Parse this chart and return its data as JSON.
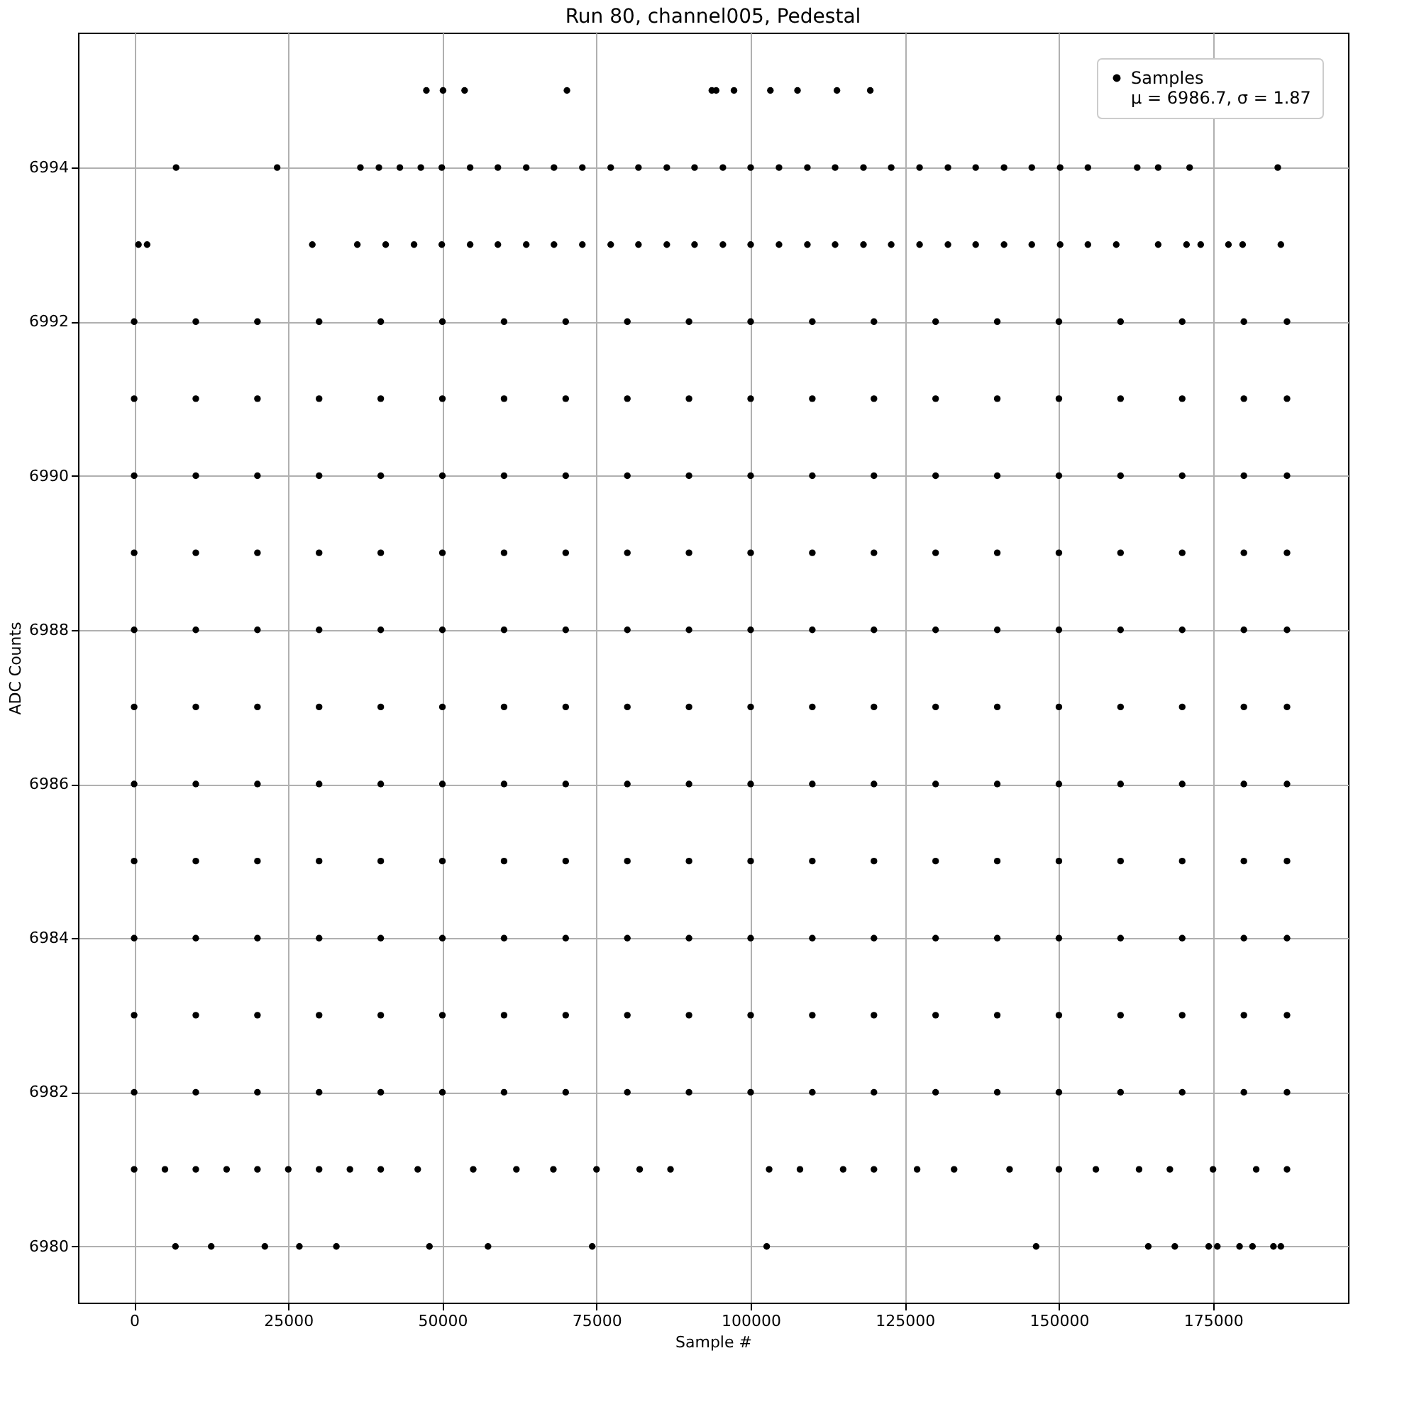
{
  "chart_data": {
    "type": "scatter",
    "title": "Run 80, channel005, Pedestal",
    "xlabel": "Sample #",
    "ylabel": "ADC Counts",
    "xlim": [
      -9100,
      196900
    ],
    "xticks": [
      0,
      25000,
      50000,
      75000,
      100000,
      125000,
      150000,
      175000
    ],
    "ylim": [
      6979.27,
      6995.75
    ],
    "yticks": [
      6980,
      6982,
      6984,
      6986,
      6988,
      6990,
      6992,
      6994
    ],
    "grid": true,
    "legend": "top right",
    "marker": "circle",
    "series": [
      {
        "name": "Samples\nμ = 6986.7, σ = 1.87",
        "color": "#000000",
        "x": [
          0,
          10000,
          20000,
          30000,
          40000,
          50000,
          60000,
          70000,
          80000,
          90000,
          100000,
          110000,
          120000,
          130000,
          140000,
          150000,
          160000,
          170000,
          180000,
          187000
        ],
        "values": [
          6986,
          6986,
          6986,
          6986,
          6986,
          6986,
          6986,
          6986,
          6986,
          6986,
          6986,
          6986,
          6986,
          6986,
          6986,
          6986,
          6986,
          6986,
          6986,
          6986
        ]
      },
      {
        "color": "#000000",
        "x": [
          0,
          10000,
          20000,
          30000,
          40000,
          50000,
          60000,
          70000,
          80000,
          90000,
          100000,
          110000,
          120000,
          130000,
          140000,
          150000,
          160000,
          170000,
          180000,
          187000
        ],
        "values": [
          6982,
          6982,
          6982,
          6982,
          6982,
          6982,
          6982,
          6982,
          6982,
          6982,
          6982,
          6982,
          6982,
          6982,
          6982,
          6982,
          6982,
          6982,
          6982,
          6982
        ]
      },
      {
        "color": "#000000",
        "x": [
          0,
          10000,
          20000,
          30000,
          40000,
          50000,
          60000,
          70000,
          80000,
          90000,
          100000,
          110000,
          120000,
          130000,
          140000,
          150000,
          160000,
          170000,
          180000,
          187000
        ],
        "values": [
          6983,
          6983,
          6983,
          6983,
          6983,
          6983,
          6983,
          6983,
          6983,
          6983,
          6983,
          6983,
          6983,
          6983,
          6983,
          6983,
          6983,
          6983,
          6983,
          6983
        ]
      },
      {
        "color": "#000000",
        "x": [
          0,
          10000,
          20000,
          30000,
          40000,
          50000,
          60000,
          70000,
          80000,
          90000,
          100000,
          110000,
          120000,
          130000,
          140000,
          150000,
          160000,
          170000,
          180000,
          187000
        ],
        "values": [
          6984,
          6984,
          6984,
          6984,
          6984,
          6984,
          6984,
          6984,
          6984,
          6984,
          6984,
          6984,
          6984,
          6984,
          6984,
          6984,
          6984,
          6984,
          6984,
          6984
        ]
      },
      {
        "color": "#000000",
        "x": [
          0,
          10000,
          20000,
          30000,
          40000,
          50000,
          60000,
          70000,
          80000,
          90000,
          100000,
          110000,
          120000,
          130000,
          140000,
          150000,
          160000,
          170000,
          180000,
          187000
        ],
        "values": [
          6985,
          6985,
          6985,
          6985,
          6985,
          6985,
          6985,
          6985,
          6985,
          6985,
          6985,
          6985,
          6985,
          6985,
          6985,
          6985,
          6985,
          6985,
          6985,
          6985
        ]
      },
      {
        "color": "#000000",
        "x": [
          0,
          10000,
          20000,
          30000,
          40000,
          50000,
          60000,
          70000,
          80000,
          90000,
          100000,
          110000,
          120000,
          130000,
          140000,
          150000,
          160000,
          170000,
          180000,
          187000
        ],
        "values": [
          6987,
          6987,
          6987,
          6987,
          6987,
          6987,
          6987,
          6987,
          6987,
          6987,
          6987,
          6987,
          6987,
          6987,
          6987,
          6987,
          6987,
          6987,
          6987,
          6987
        ]
      },
      {
        "color": "#000000",
        "x": [
          0,
          10000,
          20000,
          30000,
          40000,
          50000,
          60000,
          70000,
          80000,
          90000,
          100000,
          110000,
          120000,
          130000,
          140000,
          150000,
          160000,
          170000,
          180000,
          187000
        ],
        "values": [
          6988,
          6988,
          6988,
          6988,
          6988,
          6988,
          6988,
          6988,
          6988,
          6988,
          6988,
          6988,
          6988,
          6988,
          6988,
          6988,
          6988,
          6988,
          6988,
          6988
        ]
      },
      {
        "color": "#000000",
        "x": [
          0,
          10000,
          20000,
          30000,
          40000,
          50000,
          60000,
          70000,
          80000,
          90000,
          100000,
          110000,
          120000,
          130000,
          140000,
          150000,
          160000,
          170000,
          180000,
          187000
        ],
        "values": [
          6989,
          6989,
          6989,
          6989,
          6989,
          6989,
          6989,
          6989,
          6989,
          6989,
          6989,
          6989,
          6989,
          6989,
          6989,
          6989,
          6989,
          6989,
          6989,
          6989
        ]
      },
      {
        "color": "#000000",
        "x": [
          0,
          10000,
          20000,
          30000,
          40000,
          50000,
          60000,
          70000,
          80000,
          90000,
          100000,
          110000,
          120000,
          130000,
          140000,
          150000,
          160000,
          170000,
          180000,
          187000
        ],
        "values": [
          6990,
          6990,
          6990,
          6990,
          6990,
          6990,
          6990,
          6990,
          6990,
          6990,
          6990,
          6990,
          6990,
          6990,
          6990,
          6990,
          6990,
          6990,
          6990,
          6990
        ]
      },
      {
        "color": "#000000",
        "x": [
          0,
          10000,
          20000,
          30000,
          40000,
          50000,
          60000,
          70000,
          80000,
          90000,
          100000,
          110000,
          120000,
          130000,
          140000,
          150000,
          160000,
          170000,
          180000,
          187000
        ],
        "values": [
          6991,
          6991,
          6991,
          6991,
          6991,
          6991,
          6991,
          6991,
          6991,
          6991,
          6991,
          6991,
          6991,
          6991,
          6991,
          6991,
          6991,
          6991,
          6991,
          6991
        ]
      },
      {
        "color": "#000000",
        "x": [
          0,
          10000,
          20000,
          30000,
          40000,
          50000,
          60000,
          70000,
          80000,
          90000,
          100000,
          110000,
          120000,
          130000,
          140000,
          150000,
          160000,
          170000,
          180000,
          187000
        ],
        "values": [
          6992,
          6992,
          6992,
          6992,
          6992,
          6992,
          6992,
          6992,
          6992,
          6992,
          6992,
          6992,
          6992,
          6992,
          6992,
          6992,
          6992,
          6992,
          6992,
          6992
        ]
      },
      {
        "color": "#000000",
        "x": [
          0,
          5000,
          10000,
          15000,
          20000,
          25000,
          30000,
          35000,
          40000,
          46000,
          55000,
          62000,
          68000,
          75000,
          82000,
          87000,
          103000,
          108000,
          115000,
          120000,
          127000,
          133000,
          142000,
          150000,
          156000,
          163000,
          168000,
          175000,
          182000,
          187000
        ],
        "values": [
          6981,
          6981,
          6981,
          6981,
          6981,
          6981,
          6981,
          6981,
          6981,
          6981,
          6981,
          6981,
          6981,
          6981,
          6981,
          6981,
          6981,
          6981,
          6981,
          6981,
          6981,
          6981,
          6981,
          6981,
          6981,
          6981,
          6981,
          6981,
          6981,
          6981
        ]
      },
      {
        "color": "#000000",
        "x": [
          6700,
          12500,
          21200,
          26800,
          32800,
          47900,
          57400,
          74300,
          102600,
          146300,
          164500,
          168800,
          174300,
          175700,
          179300,
          181400,
          184800,
          186000
        ],
        "values": [
          6980,
          6980,
          6980,
          6980,
          6980,
          6980,
          6980,
          6980,
          6980,
          6980,
          6980,
          6980,
          6980,
          6980,
          6980,
          6980,
          6980,
          6980
        ]
      },
      {
        "color": "#000000",
        "x": [
          700,
          2100,
          28900,
          36200,
          40800,
          45400,
          49900,
          54500,
          59000,
          63600,
          68100,
          72700,
          77300,
          81800,
          86400,
          90900,
          95500,
          100000,
          104600,
          109200,
          113700,
          118300,
          122800,
          127400,
          132000,
          136500,
          141100,
          145600,
          150200,
          154700,
          159300,
          166100,
          170700,
          173000,
          177500,
          179800,
          186000
        ],
        "values": [
          6993,
          6993,
          6993,
          6993,
          6993,
          6993,
          6993,
          6993,
          6993,
          6993,
          6993,
          6993,
          6993,
          6993,
          6993,
          6993,
          6993,
          6993,
          6993,
          6993,
          6993,
          6993,
          6993,
          6993,
          6993,
          6993,
          6993,
          6993,
          6993,
          6993,
          6993,
          6993,
          6993,
          6993,
          6993,
          6993,
          6993
        ]
      },
      {
        "color": "#000000",
        "x": [
          6800,
          23200,
          36700,
          39700,
          43100,
          46500,
          49900,
          54500,
          59000,
          63600,
          68100,
          72700,
          77300,
          81800,
          86400,
          90900,
          95500,
          100000,
          104600,
          109200,
          113700,
          118300,
          122800,
          127400,
          132000,
          136500,
          141100,
          145600,
          150200,
          154700,
          162700,
          166100,
          171200,
          185500
        ],
        "values": [
          6994,
          6994,
          6994,
          6994,
          6994,
          6994,
          6994,
          6994,
          6994,
          6994,
          6994,
          6994,
          6994,
          6994,
          6994,
          6994,
          6994,
          6994,
          6994,
          6994,
          6994,
          6994,
          6994,
          6994,
          6994,
          6994,
          6994,
          6994,
          6994,
          6994,
          6994,
          6994,
          6994,
          6994
        ]
      },
      {
        "color": "#000000",
        "x": [
          47400,
          50100,
          53600,
          70200,
          93700,
          94400,
          97300,
          103200,
          107600,
          114000,
          119400
        ],
        "values": [
          6995,
          6995,
          6995,
          6995,
          6995,
          6995,
          6995,
          6995,
          6995,
          6995,
          6995
        ]
      }
    ]
  }
}
